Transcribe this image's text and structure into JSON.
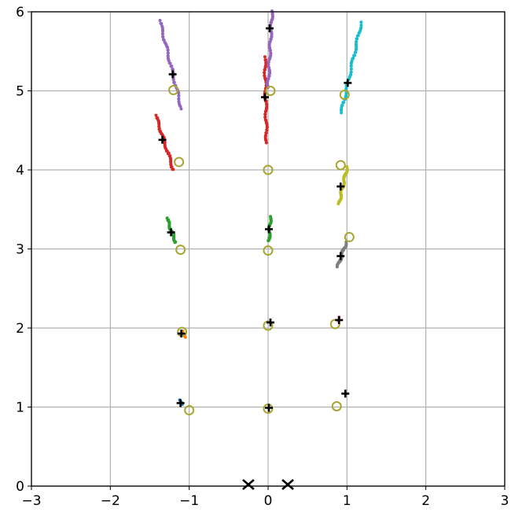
{
  "chart_data": {
    "type": "scatter",
    "title": "",
    "xlabel": "",
    "ylabel": "",
    "xlim": [
      -3,
      3
    ],
    "ylim": [
      0,
      6
    ],
    "grid": true,
    "x_ticks": [
      -3,
      -2,
      -1,
      0,
      1,
      2,
      3
    ],
    "x_tick_labels": [
      "−3",
      "−2",
      "−1",
      "0",
      "1",
      "2",
      "3"
    ],
    "y_ticks": [
      0,
      1,
      2,
      3,
      4,
      5,
      6
    ],
    "y_tick_labels": [
      "0",
      "1",
      "2",
      "3",
      "4",
      "5",
      "6"
    ],
    "trails": [
      {
        "color": "#9467bd",
        "from": [
          -1.37,
          5.88
        ],
        "to": [
          -1.1,
          4.78
        ],
        "count": 60
      },
      {
        "color": "#d62728",
        "from": [
          -0.04,
          5.42
        ],
        "to": [
          -0.02,
          4.35
        ],
        "count": 60
      },
      {
        "color": "#9467bd",
        "from": [
          0.05,
          6.0
        ],
        "to": [
          0.0,
          5.05
        ],
        "count": 60
      },
      {
        "color": "#17becf",
        "from": [
          1.18,
          5.86
        ],
        "to": [
          0.93,
          4.73
        ],
        "count": 60
      },
      {
        "color": "#d62728",
        "from": [
          -1.42,
          4.68
        ],
        "to": [
          -1.2,
          4.0
        ],
        "count": 45
      },
      {
        "color": "#bcbd22",
        "from": [
          1.0,
          4.03
        ],
        "to": [
          0.9,
          3.58
        ],
        "count": 40
      },
      {
        "color": "#2ca02c",
        "from": [
          -1.28,
          3.38
        ],
        "to": [
          -1.17,
          3.08
        ],
        "count": 30
      },
      {
        "color": "#2ca02c",
        "from": [
          0.03,
          3.4
        ],
        "to": [
          0.01,
          3.1
        ],
        "count": 25
      },
      {
        "color": "#7f7f7f",
        "from": [
          0.99,
          3.08
        ],
        "to": [
          0.88,
          2.77
        ],
        "count": 30
      },
      {
        "color": "#e377c2",
        "from": [
          0.9,
          2.13
        ],
        "to": [
          0.88,
          2.08
        ],
        "count": 5
      },
      {
        "color": "#ff7f0e",
        "from": [
          -1.08,
          1.95
        ],
        "to": [
          -1.06,
          1.88
        ],
        "count": 5
      },
      {
        "color": "#1f77b4",
        "from": [
          -1.12,
          1.08
        ],
        "to": [
          -1.1,
          1.04
        ],
        "count": 4
      }
    ],
    "plus_markers": [
      [
        -1.21,
        5.21
      ],
      [
        0.02,
        5.79
      ],
      [
        1.01,
        5.1
      ],
      [
        -0.04,
        4.92
      ],
      [
        -1.34,
        4.38
      ],
      [
        0.92,
        3.79
      ],
      [
        -1.23,
        3.21
      ],
      [
        0.01,
        3.25
      ],
      [
        0.92,
        2.91
      ],
      [
        -1.1,
        1.93
      ],
      [
        0.03,
        2.07
      ],
      [
        0.9,
        2.1
      ],
      [
        -1.11,
        1.05
      ],
      [
        0.98,
        1.17
      ],
      [
        0.01,
        0.99
      ]
    ],
    "circle_markers": [
      [
        -1.2,
        5.01
      ],
      [
        0.03,
        5.0
      ],
      [
        0.97,
        4.95
      ],
      [
        -1.13,
        4.1
      ],
      [
        0.0,
        4.0
      ],
      [
        0.92,
        4.06
      ],
      [
        -1.11,
        2.99
      ],
      [
        0.0,
        2.98
      ],
      [
        1.03,
        3.15
      ],
      [
        -1.09,
        1.95
      ],
      [
        0.0,
        2.03
      ],
      [
        0.85,
        2.05
      ],
      [
        -1.0,
        0.96
      ],
      [
        0.0,
        0.98
      ],
      [
        0.87,
        1.01
      ]
    ],
    "x_markers": [
      [
        -0.25,
        0.0
      ],
      [
        0.25,
        0.0
      ]
    ],
    "colors": {
      "circle": "#a8a633",
      "plus": "#000000",
      "x_marker": "#000000",
      "grid": "#b0b0b0"
    }
  }
}
